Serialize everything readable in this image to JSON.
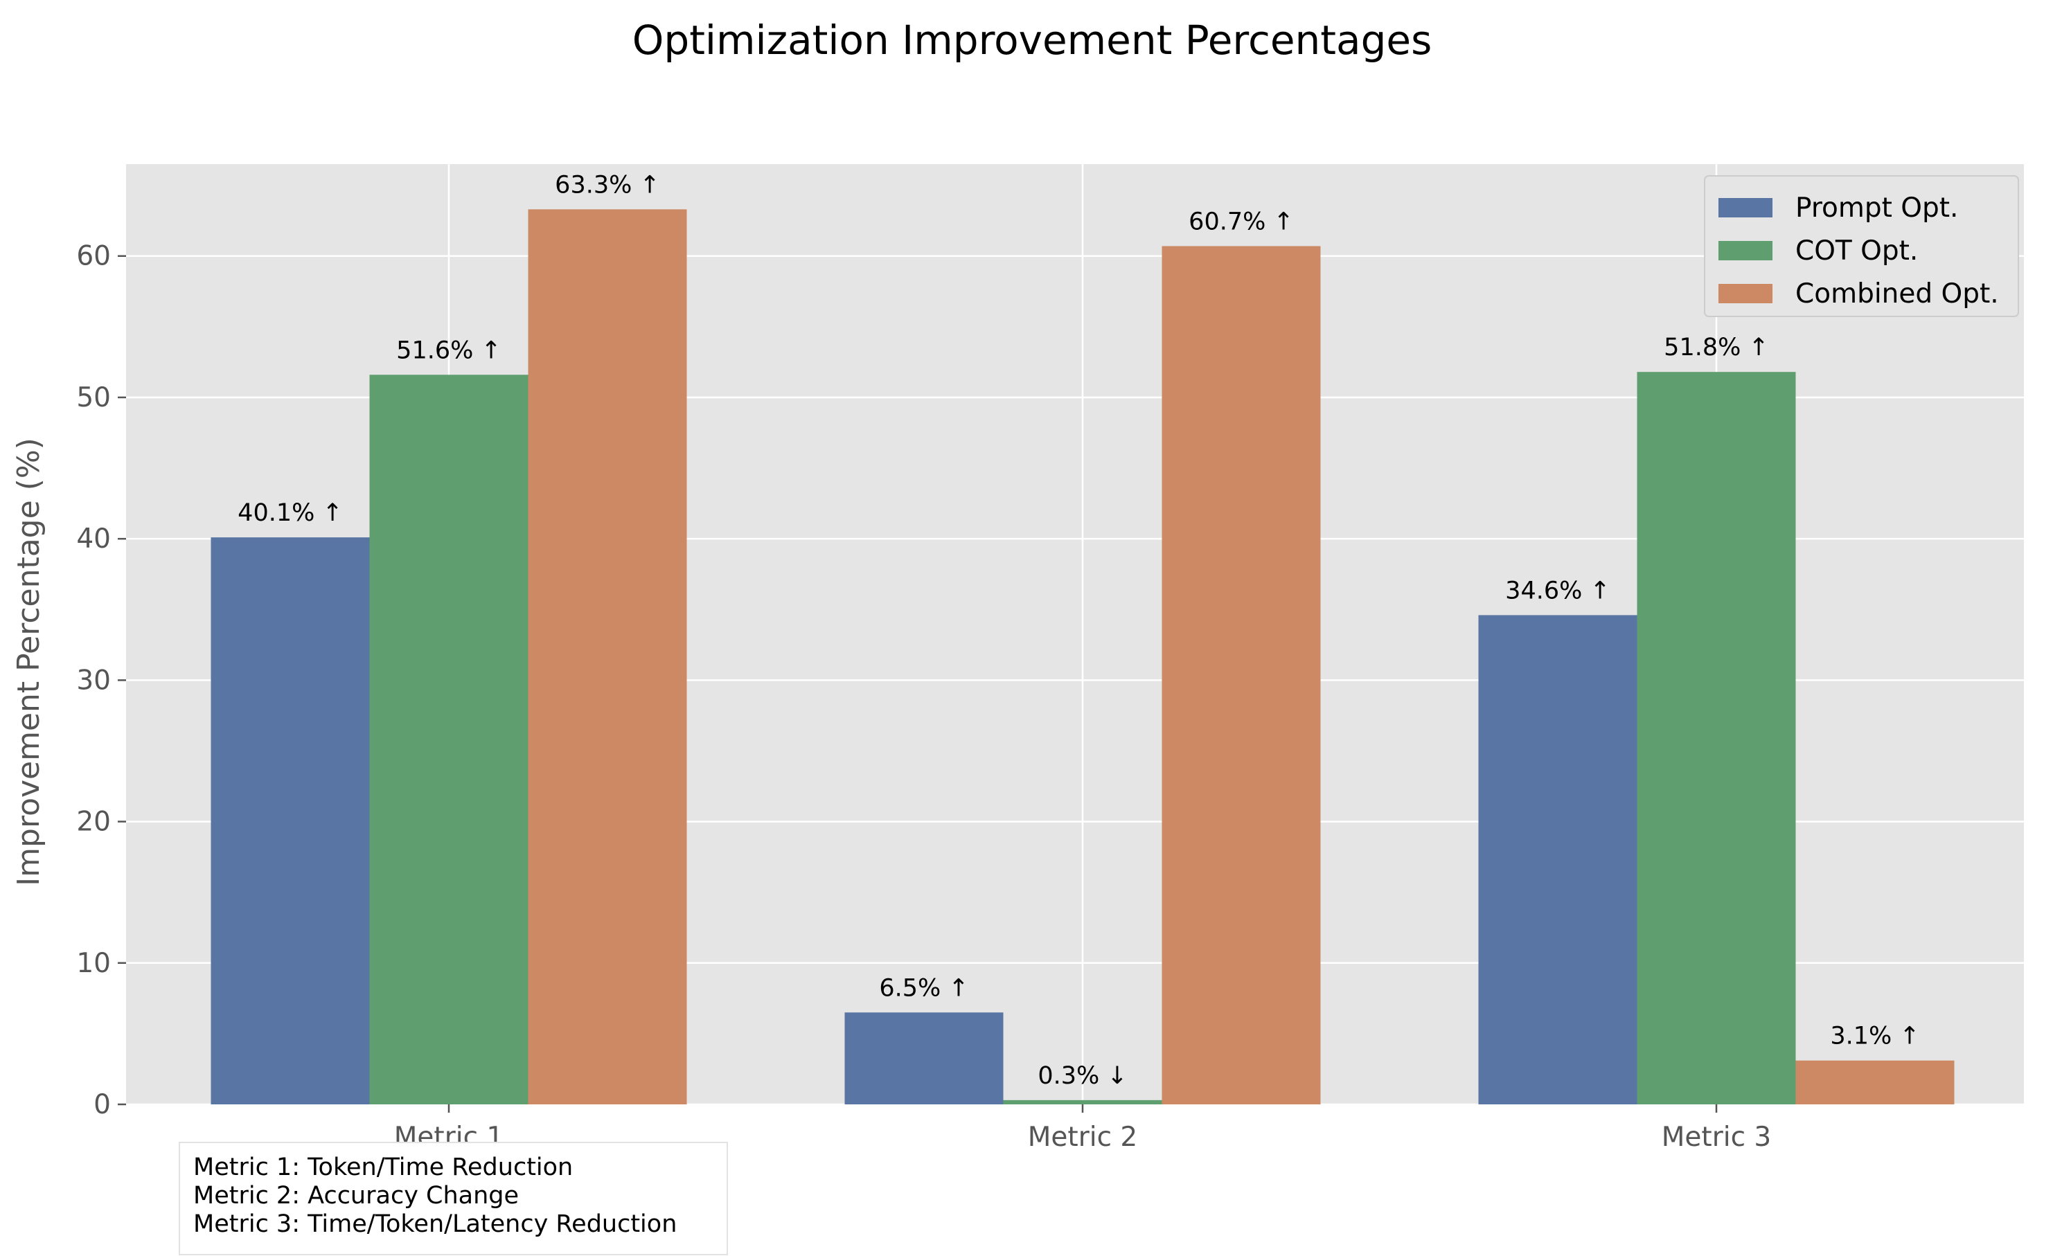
{
  "chart_data": {
    "type": "bar",
    "title": "Optimization Improvement Percentages",
    "xlabel": "",
    "ylabel": "Improvement Percentage (%)",
    "ylim": [
      0,
      66.5
    ],
    "yticks": [
      "0",
      "10",
      "20",
      "30",
      "40",
      "50",
      "60"
    ],
    "categories": [
      "Metric 1",
      "Metric 2",
      "Metric 3"
    ],
    "series": [
      {
        "name": "Prompt Opt.",
        "color": "#5975a4",
        "values": [
          40.1,
          6.5,
          34.6
        ],
        "labels": [
          "40.1% ↑",
          "6.5% ↑",
          "34.6% ↑"
        ]
      },
      {
        "name": "COT Opt.",
        "color": "#5f9e6e",
        "values": [
          51.6,
          0.3,
          51.8
        ],
        "labels": [
          "51.6% ↑",
          "0.3% ↓",
          "51.8% ↑"
        ]
      },
      {
        "name": "Combined Opt.",
        "color": "#cc8963",
        "values": [
          63.3,
          60.7,
          3.1
        ],
        "labels": [
          "63.3% ↑",
          "60.7% ↑",
          "3.1% ↑"
        ]
      }
    ],
    "grid": true,
    "legend_position": "top-right",
    "annotation": [
      "Metric 1: Token/Time Reduction",
      "Metric 2: Accuracy Change",
      "Metric 3: Time/Token/Latency Reduction"
    ],
    "background_color": "#e5e5e5"
  }
}
